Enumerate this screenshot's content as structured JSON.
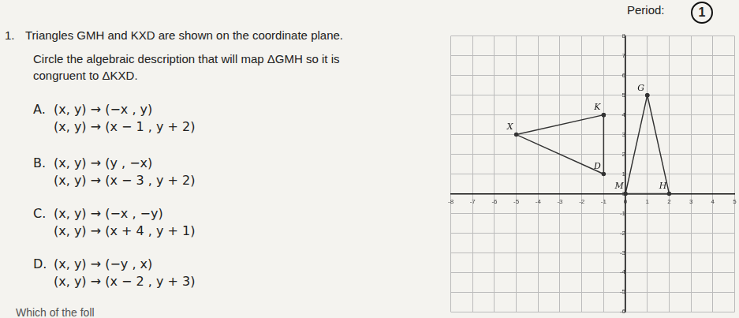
{
  "header": {
    "period_label": "Period:",
    "badge": "1"
  },
  "question": {
    "number": "1.",
    "text": "Triangles GMH and KXD are shown on the coordinate plane.",
    "instruction_lines": [
      "Circle the algebraic description that will map ΔGMH so it is",
      "congruent to ΔKXD."
    ]
  },
  "options": [
    {
      "letter": "A.",
      "rules": [
        "(x, y) → (−x , y)",
        "(x, y) → (x − 1 , y + 2)"
      ]
    },
    {
      "letter": "B.",
      "rules": [
        "(x, y) → (y , −x)",
        "(x, y) → (x − 3 , y + 2)"
      ]
    },
    {
      "letter": "C.",
      "rules": [
        "(x, y) → (−x , −y)",
        "(x, y) → (x + 4 , y + 1)"
      ]
    },
    {
      "letter": "D.",
      "rules": [
        "(x, y) → (−y , x)",
        "(x, y) → (x − 2 , y + 3)"
      ]
    }
  ],
  "footer": "Which of the foll",
  "chart_data": {
    "type": "scatter",
    "xlim": [
      -8,
      5
    ],
    "ylim": [
      -6,
      8
    ],
    "xticks": [
      -8,
      -7,
      -6,
      -5,
      -4,
      -3,
      -2,
      -1,
      0,
      1,
      2,
      3,
      4,
      5
    ],
    "yticks": [
      -6,
      -5,
      -4,
      -3,
      -2,
      -1,
      0,
      1,
      2,
      3,
      4,
      5,
      6,
      7,
      8
    ],
    "grid": true,
    "series": [
      {
        "color": "#333333",
        "vertices": [
          {
            "label": "G",
            "x": 1,
            "y": 5
          },
          {
            "label": "M",
            "x": 0,
            "y": 0
          },
          {
            "label": "H",
            "x": 2,
            "y": 0
          }
        ]
      },
      {
        "color": "#333333",
        "vertices": [
          {
            "label": "K",
            "x": -1,
            "y": 4
          },
          {
            "label": "X",
            "x": -5,
            "y": 3
          },
          {
            "label": "D",
            "x": -1,
            "y": 1
          }
        ]
      }
    ]
  }
}
